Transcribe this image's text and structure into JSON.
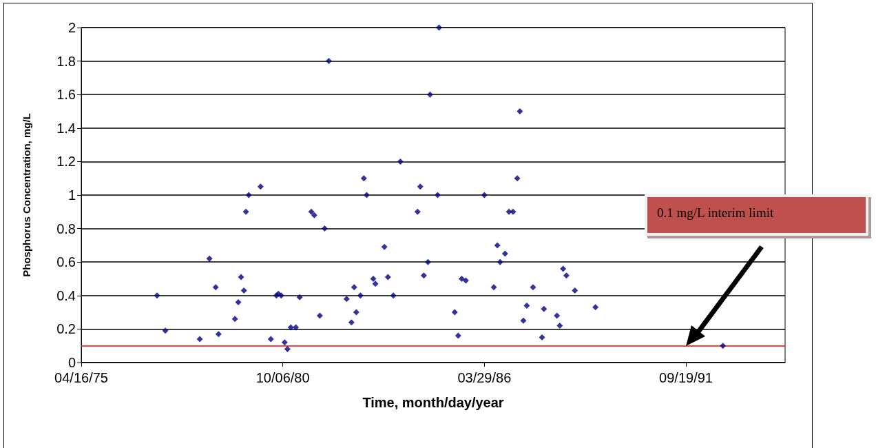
{
  "chart_data": {
    "type": "scatter",
    "xlabel": "Time, month/day/year",
    "ylabel": "Phosphorus Concentration, mg/L",
    "xlim": [
      "1975-04-16",
      "1994-05-30"
    ],
    "xticks": [
      {
        "value": "1975-04-16",
        "label": "04/16/75"
      },
      {
        "value": "1980-10-06",
        "label": "10/06/80"
      },
      {
        "value": "1986-03-29",
        "label": "03/29/86"
      },
      {
        "value": "1991-09-19",
        "label": "09/19/91"
      }
    ],
    "ylim": [
      0,
      2
    ],
    "yticks": [
      0,
      0.2,
      0.4,
      0.6,
      0.8,
      1,
      1.2,
      1.4,
      1.6,
      1.8,
      2
    ],
    "grid": "y",
    "marker": "diamond",
    "series": [
      {
        "color": "#000080",
        "x": [
          "1977-05-07",
          "1977-07-28",
          "1978-07-05",
          "1978-10-09",
          "1978-12-10",
          "1979-01-07",
          "1979-06-19",
          "1979-07-22",
          "1979-08-19",
          "1979-09-16",
          "1979-10-06",
          "1979-11-03",
          "1980-02-28",
          "1980-06-09",
          "1980-08-03",
          "1980-08-23",
          "1980-09-20",
          "1980-10-24",
          "1980-11-21",
          "1980-12-24",
          "1981-02-12",
          "1981-03-22",
          "1981-07-16",
          "1981-08-14",
          "1981-10-08",
          "1981-11-25",
          "1982-01-05",
          "1982-07-01",
          "1982-08-18",
          "1982-09-14",
          "1982-10-05",
          "1982-11-15",
          "1982-12-19",
          "1983-01-16",
          "1983-03-23",
          "1983-04-13",
          "1983-07-11",
          "1983-08-15",
          "1983-10-08",
          "1983-12-16",
          "1984-06-04",
          "1984-07-01",
          "1984-08-05",
          "1984-09-15",
          "1984-10-06",
          "1984-12-20",
          "1985-01-03",
          "1985-06-08",
          "1985-07-12",
          "1985-08-16",
          "1985-09-26",
          "1986-03-29",
          "1986-07-01",
          "1986-08-05",
          "1986-09-01",
          "1986-10-20",
          "1986-11-28",
          "1987-01-08",
          "1987-02-18",
          "1987-03-16",
          "1987-04-20",
          "1987-05-24",
          "1987-07-25",
          "1987-10-22",
          "1987-11-10",
          "1988-03-18",
          "1988-04-15",
          "1988-05-18",
          "1988-06-20",
          "1988-09-12",
          "1989-04-04",
          "1992-09-20"
        ],
        "values": [
          0.4,
          0.19,
          0.14,
          0.62,
          0.45,
          0.17,
          0.26,
          0.36,
          0.51,
          0.43,
          0.9,
          1,
          1.05,
          0.14,
          0.4,
          0.41,
          0.4,
          0.12,
          0.08,
          0.21,
          0.21,
          0.39,
          0.9,
          0.88,
          0.28,
          0.8,
          1.8,
          0.38,
          0.24,
          0.45,
          0.3,
          0.4,
          1.1,
          1,
          0.5,
          0.47,
          0.69,
          0.51,
          0.4,
          1.2,
          0.9,
          1.05,
          0.52,
          0.6,
          1.6,
          1,
          2,
          0.3,
          0.16,
          0.5,
          0.49,
          1,
          0.45,
          0.7,
          0.6,
          0.65,
          0.9,
          0.9,
          1.1,
          1.5,
          0.25,
          0.34,
          0.45,
          0.15,
          0.32,
          0.28,
          0.22,
          0.56,
          0.52,
          0.43,
          0.33,
          0.1
        ]
      }
    ],
    "ref_lines": [
      {
        "axis": "y",
        "value": 0.1,
        "color": "#ff0000",
        "line_style": "solid"
      }
    ],
    "annotations": [
      "0.1 mg/L interim limit"
    ]
  }
}
